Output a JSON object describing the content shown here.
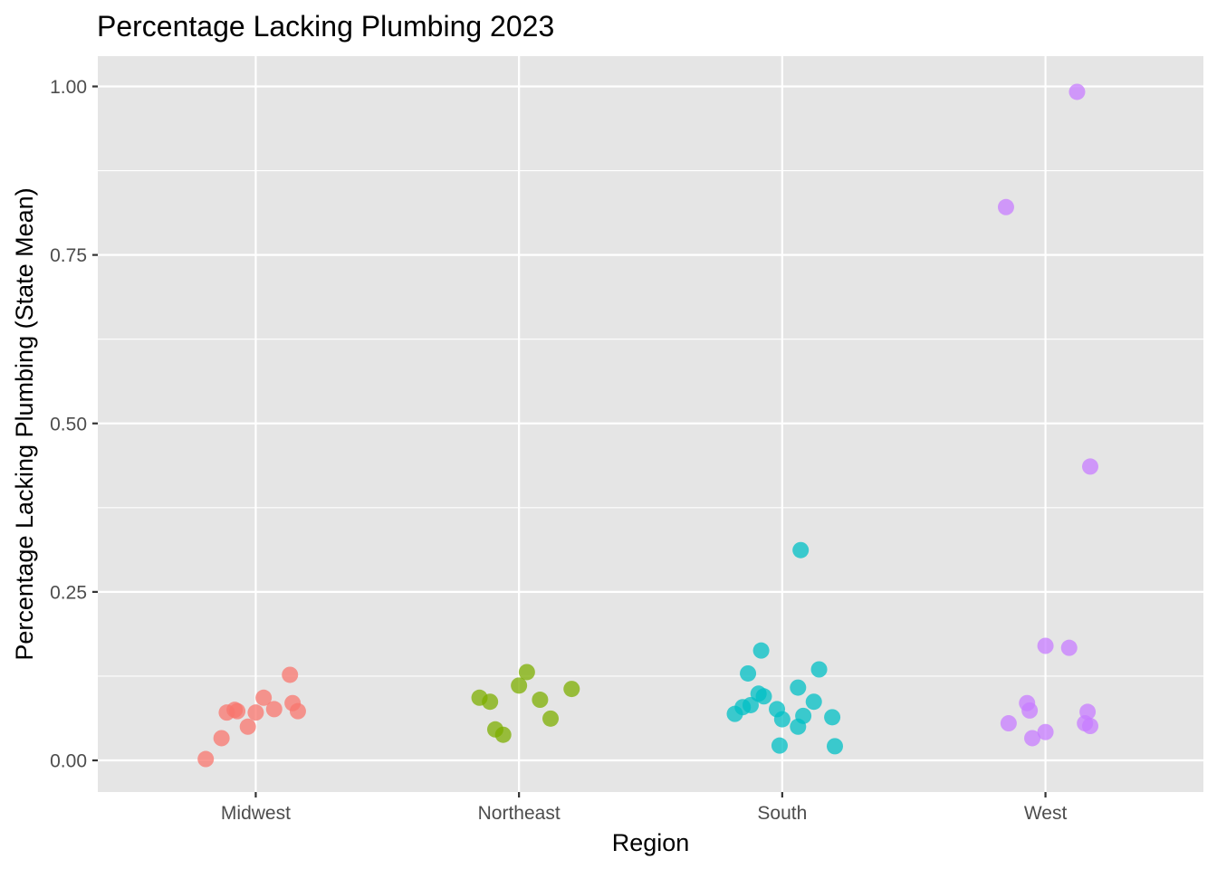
{
  "chart_data": {
    "type": "scatter",
    "title": "Percentage Lacking Plumbing 2023",
    "xlabel": "Region",
    "ylabel": "Percentage Lacking Plumbing (State Mean)",
    "categories": [
      "Midwest",
      "Northeast",
      "South",
      "West"
    ],
    "ylim": [
      -0.047,
      1.045
    ],
    "yticks": [
      0.0,
      0.25,
      0.5,
      0.75,
      1.0
    ],
    "ytick_labels": [
      "0.00",
      "0.25",
      "0.50",
      "0.75",
      "1.00"
    ],
    "grid": true,
    "legend": "none",
    "series": [
      {
        "category": "Midwest",
        "color": "#F8766D",
        "points": [
          {
            "x": 0.81,
            "y": 0.002
          },
          {
            "x": 0.87,
            "y": 0.033
          },
          {
            "x": 0.89,
            "y": 0.071
          },
          {
            "x": 0.92,
            "y": 0.075
          },
          {
            "x": 0.93,
            "y": 0.073
          },
          {
            "x": 0.97,
            "y": 0.05
          },
          {
            "x": 1.0,
            "y": 0.071
          },
          {
            "x": 1.03,
            "y": 0.093
          },
          {
            "x": 1.07,
            "y": 0.076
          },
          {
            "x": 1.13,
            "y": 0.127
          },
          {
            "x": 1.14,
            "y": 0.085
          },
          {
            "x": 1.16,
            "y": 0.073
          }
        ]
      },
      {
        "category": "Northeast",
        "color": "#7CAE00",
        "points": [
          {
            "x": 1.85,
            "y": 0.093
          },
          {
            "x": 1.89,
            "y": 0.087
          },
          {
            "x": 1.91,
            "y": 0.046
          },
          {
            "x": 1.94,
            "y": 0.038
          },
          {
            "x": 2.0,
            "y": 0.111
          },
          {
            "x": 2.03,
            "y": 0.131
          },
          {
            "x": 2.08,
            "y": 0.09
          },
          {
            "x": 2.12,
            "y": 0.062
          },
          {
            "x": 2.2,
            "y": 0.106
          }
        ]
      },
      {
        "category": "South",
        "color": "#00BFC4",
        "points": [
          {
            "x": 2.82,
            "y": 0.069
          },
          {
            "x": 2.85,
            "y": 0.079
          },
          {
            "x": 2.87,
            "y": 0.129
          },
          {
            "x": 2.88,
            "y": 0.082
          },
          {
            "x": 2.91,
            "y": 0.099
          },
          {
            "x": 2.92,
            "y": 0.163
          },
          {
            "x": 2.93,
            "y": 0.095
          },
          {
            "x": 2.98,
            "y": 0.076
          },
          {
            "x": 2.99,
            "y": 0.022
          },
          {
            "x": 3.0,
            "y": 0.061
          },
          {
            "x": 3.06,
            "y": 0.108
          },
          {
            "x": 3.06,
            "y": 0.05
          },
          {
            "x": 3.07,
            "y": 0.312
          },
          {
            "x": 3.08,
            "y": 0.066
          },
          {
            "x": 3.12,
            "y": 0.087
          },
          {
            "x": 3.14,
            "y": 0.135
          },
          {
            "x": 3.19,
            "y": 0.064
          },
          {
            "x": 3.2,
            "y": 0.021
          }
        ]
      },
      {
        "category": "West",
        "color": "#C77CFF",
        "points": [
          {
            "x": 3.85,
            "y": 0.821
          },
          {
            "x": 3.86,
            "y": 0.055
          },
          {
            "x": 3.93,
            "y": 0.085
          },
          {
            "x": 3.94,
            "y": 0.074
          },
          {
            "x": 3.95,
            "y": 0.033
          },
          {
            "x": 4.0,
            "y": 0.042
          },
          {
            "x": 4.0,
            "y": 0.17
          },
          {
            "x": 4.09,
            "y": 0.167
          },
          {
            "x": 4.12,
            "y": 0.992
          },
          {
            "x": 4.15,
            "y": 0.055
          },
          {
            "x": 4.16,
            "y": 0.072
          },
          {
            "x": 4.17,
            "y": 0.436
          },
          {
            "x": 4.17,
            "y": 0.051
          }
        ]
      }
    ]
  }
}
